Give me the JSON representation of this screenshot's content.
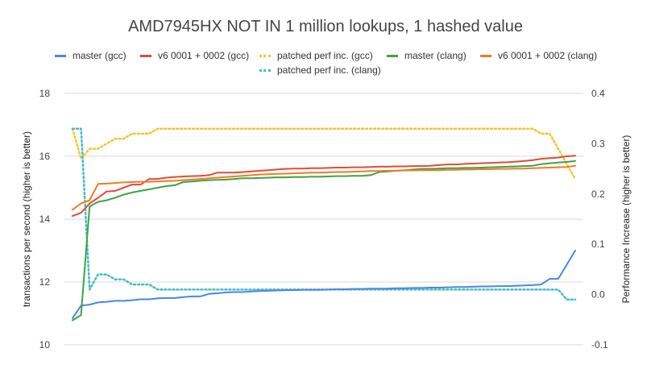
{
  "chart_data": {
    "type": "line",
    "title": "AMD7945HX NOT IN 1 million lookups, 1 hashed value",
    "ylabel_left": "transactions per second (higher is better)",
    "ylabel_right": "Performance Increase (higher is better)",
    "ylim_left": [
      10,
      18
    ],
    "yticks_left": [
      "10",
      "12",
      "14",
      "16",
      "18"
    ],
    "ylim_right": [
      -0.1,
      0.4
    ],
    "yticks_right": [
      "-0.1",
      "0.0",
      "0.1",
      "0.2",
      "0.3",
      "0.4"
    ],
    "grid": true,
    "legend_position": "top",
    "x": [
      1,
      2,
      3,
      4,
      5,
      6,
      7,
      8,
      9,
      10,
      11,
      12,
      13,
      14,
      15,
      16,
      17,
      18,
      19,
      20,
      21,
      22,
      23,
      24,
      25,
      26,
      27,
      28,
      29,
      30,
      31,
      32,
      33,
      34,
      35,
      36,
      37,
      38,
      39,
      40,
      41,
      42,
      43,
      44,
      45,
      46,
      47,
      48,
      49,
      50,
      51,
      52,
      53,
      54,
      55,
      56,
      57,
      58,
      59,
      60
    ],
    "series": [
      {
        "name": "master (gcc)",
        "axis": "left",
        "color": "#4a86e8",
        "style": "solid",
        "values": [
          10.85,
          11.25,
          11.28,
          11.35,
          11.37,
          11.4,
          11.4,
          11.42,
          11.45,
          11.45,
          11.48,
          11.49,
          11.49,
          11.52,
          11.54,
          11.54,
          11.62,
          11.64,
          11.67,
          11.68,
          11.68,
          11.7,
          11.71,
          11.72,
          11.73,
          11.74,
          11.74,
          11.75,
          11.75,
          11.75,
          11.76,
          11.77,
          11.77,
          11.78,
          11.78,
          11.79,
          11.79,
          11.79,
          11.8,
          11.8,
          11.81,
          11.81,
          11.82,
          11.82,
          11.83,
          11.84,
          11.84,
          11.85,
          11.86,
          11.86,
          11.87,
          11.87,
          11.88,
          11.89,
          11.9,
          11.92,
          12.1,
          12.1,
          12.55,
          13.0
        ]
      },
      {
        "name": "v6 0001 + 0002 (gcc)",
        "axis": "left",
        "color": "#e04b3c",
        "style": "solid",
        "values": [
          14.1,
          14.2,
          14.5,
          14.68,
          14.88,
          14.9,
          15.0,
          15.1,
          15.1,
          15.28,
          15.28,
          15.32,
          15.34,
          15.36,
          15.37,
          15.38,
          15.4,
          15.48,
          15.48,
          15.48,
          15.5,
          15.52,
          15.54,
          15.56,
          15.58,
          15.6,
          15.61,
          15.61,
          15.62,
          15.62,
          15.63,
          15.64,
          15.64,
          15.65,
          15.65,
          15.66,
          15.67,
          15.67,
          15.68,
          15.68,
          15.69,
          15.69,
          15.7,
          15.72,
          15.74,
          15.74,
          15.76,
          15.77,
          15.78,
          15.79,
          15.8,
          15.81,
          15.83,
          15.85,
          15.88,
          15.92,
          15.94,
          15.96,
          16.0,
          16.02
        ]
      },
      {
        "name": "master (clang)",
        "axis": "left",
        "color": "#3ea346",
        "style": "solid",
        "values": [
          10.78,
          10.95,
          14.4,
          14.55,
          14.6,
          14.68,
          14.78,
          14.85,
          14.9,
          14.95,
          15.0,
          15.05,
          15.08,
          15.18,
          15.2,
          15.22,
          15.24,
          15.25,
          15.26,
          15.28,
          15.3,
          15.3,
          15.31,
          15.32,
          15.33,
          15.33,
          15.34,
          15.34,
          15.35,
          15.35,
          15.36,
          15.37,
          15.37,
          15.38,
          15.38,
          15.4,
          15.5,
          15.52,
          15.54,
          15.56,
          15.58,
          15.6,
          15.6,
          15.61,
          15.62,
          15.62,
          15.63,
          15.63,
          15.64,
          15.65,
          15.66,
          15.67,
          15.68,
          15.69,
          15.7,
          15.75,
          15.78,
          15.8,
          15.82,
          15.85
        ]
      },
      {
        "name": "v6 0001 + 0002 (clang)",
        "axis": "left",
        "color": "#f07c21",
        "style": "solid",
        "values": [
          14.3,
          14.5,
          14.6,
          15.12,
          15.13,
          15.15,
          15.17,
          15.18,
          15.19,
          15.19,
          15.2,
          15.21,
          15.22,
          15.24,
          15.26,
          15.28,
          15.3,
          15.32,
          15.34,
          15.36,
          15.38,
          15.4,
          15.42,
          15.43,
          15.44,
          15.45,
          15.46,
          15.47,
          15.48,
          15.48,
          15.49,
          15.5,
          15.5,
          15.51,
          15.52,
          15.53,
          15.53,
          15.54,
          15.54,
          15.55,
          15.55,
          15.56,
          15.56,
          15.56,
          15.57,
          15.57,
          15.58,
          15.58,
          15.59,
          15.59,
          15.6,
          15.6,
          15.61,
          15.61,
          15.62,
          15.63,
          15.64,
          15.65,
          15.66,
          15.7
        ]
      },
      {
        "name": "patched perf inc. (gcc)",
        "axis": "right",
        "color": "#f4c430",
        "style": "dotted",
        "values": [
          0.33,
          0.27,
          0.29,
          0.29,
          0.3,
          0.31,
          0.31,
          0.32,
          0.32,
          0.32,
          0.33,
          0.33,
          0.33,
          0.33,
          0.33,
          0.33,
          0.33,
          0.33,
          0.33,
          0.33,
          0.33,
          0.33,
          0.33,
          0.33,
          0.33,
          0.33,
          0.33,
          0.33,
          0.33,
          0.33,
          0.33,
          0.33,
          0.33,
          0.33,
          0.33,
          0.33,
          0.33,
          0.33,
          0.33,
          0.33,
          0.33,
          0.33,
          0.33,
          0.33,
          0.33,
          0.33,
          0.33,
          0.33,
          0.33,
          0.33,
          0.33,
          0.33,
          0.33,
          0.33,
          0.33,
          0.32,
          0.32,
          0.29,
          0.26,
          0.23
        ]
      },
      {
        "name": "patched perf inc. (clang)",
        "axis": "right",
        "color": "#46bdc6",
        "style": "dotted",
        "values": [
          0.33,
          0.33,
          0.01,
          0.04,
          0.04,
          0.03,
          0.03,
          0.02,
          0.02,
          0.02,
          0.01,
          0.01,
          0.01,
          0.01,
          0.01,
          0.01,
          0.01,
          0.01,
          0.01,
          0.01,
          0.01,
          0.01,
          0.01,
          0.01,
          0.01,
          0.01,
          0.01,
          0.01,
          0.01,
          0.01,
          0.01,
          0.01,
          0.01,
          0.01,
          0.01,
          0.01,
          0.01,
          0.01,
          0.01,
          0.01,
          0.01,
          0.01,
          0.01,
          0.01,
          0.01,
          0.01,
          0.01,
          0.01,
          0.01,
          0.01,
          0.01,
          0.01,
          0.01,
          0.01,
          0.01,
          0.01,
          0.01,
          0.01,
          -0.01,
          -0.01
        ]
      }
    ]
  }
}
